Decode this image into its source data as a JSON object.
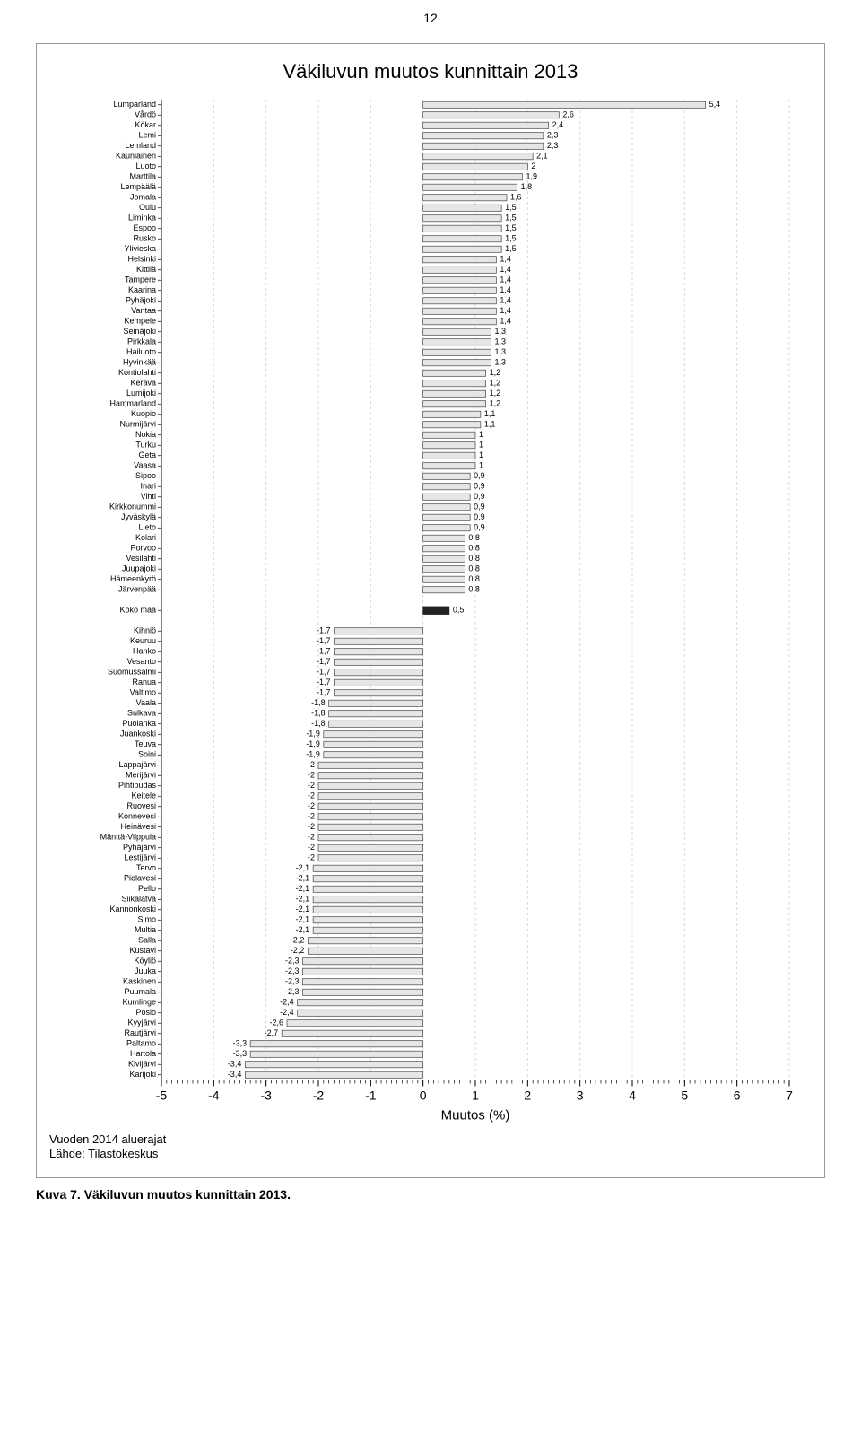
{
  "page_number": "12",
  "chart": {
    "type": "bar-horizontal",
    "title": "Väkiluvun muutos kunnittain 2013",
    "xlabel": "Muutos (%)",
    "xlim": [
      -5,
      7
    ],
    "xtick_step": 1,
    "minor_ticks": 10,
    "row_height": 11.5,
    "label_fontsize": 9,
    "value_fontsize": 9,
    "title_fontsize": 22,
    "xlabel_fontsize": 15,
    "bar_fill": "#e6e6e6",
    "bar_stroke": "#444444",
    "koko_fill": "#222222",
    "grid_color": "#d9d9d9",
    "axis_color": "#000000",
    "tick_color": "#000000",
    "text_color": "#000000",
    "background_color": "#ffffff",
    "series_top": [
      {
        "label": "Lumparland",
        "value": 5.4,
        "text": "5,4"
      },
      {
        "label": "Vårdö",
        "value": 2.6,
        "text": "2,6"
      },
      {
        "label": "Kökar",
        "value": 2.4,
        "text": "2,4"
      },
      {
        "label": "Lemi",
        "value": 2.3,
        "text": "2,3"
      },
      {
        "label": "Lemland",
        "value": 2.3,
        "text": "2,3"
      },
      {
        "label": "Kauniainen",
        "value": 2.1,
        "text": "2,1"
      },
      {
        "label": "Luoto",
        "value": 2.0,
        "text": "2"
      },
      {
        "label": "Marttila",
        "value": 1.9,
        "text": "1,9"
      },
      {
        "label": "Lempäälä",
        "value": 1.8,
        "text": "1,8"
      },
      {
        "label": "Jomala",
        "value": 1.6,
        "text": "1,6"
      },
      {
        "label": "Oulu",
        "value": 1.5,
        "text": "1,5"
      },
      {
        "label": "Liminka",
        "value": 1.5,
        "text": "1,5"
      },
      {
        "label": "Espoo",
        "value": 1.5,
        "text": "1,5"
      },
      {
        "label": "Rusko",
        "value": 1.5,
        "text": "1,5"
      },
      {
        "label": "Ylivieska",
        "value": 1.5,
        "text": "1,5"
      },
      {
        "label": "Helsinki",
        "value": 1.4,
        "text": "1,4"
      },
      {
        "label": "Kittilä",
        "value": 1.4,
        "text": "1,4"
      },
      {
        "label": "Tampere",
        "value": 1.4,
        "text": "1,4"
      },
      {
        "label": "Kaarina",
        "value": 1.4,
        "text": "1,4"
      },
      {
        "label": "Pyhäjoki",
        "value": 1.4,
        "text": "1,4"
      },
      {
        "label": "Vantaa",
        "value": 1.4,
        "text": "1,4"
      },
      {
        "label": "Kempele",
        "value": 1.4,
        "text": "1,4"
      },
      {
        "label": "Seinäjoki",
        "value": 1.3,
        "text": "1,3"
      },
      {
        "label": "Pirkkala",
        "value": 1.3,
        "text": "1,3"
      },
      {
        "label": "Hailuoto",
        "value": 1.3,
        "text": "1,3"
      },
      {
        "label": "Hyvinkää",
        "value": 1.3,
        "text": "1,3"
      },
      {
        "label": "Kontiolahti",
        "value": 1.2,
        "text": "1,2"
      },
      {
        "label": "Kerava",
        "value": 1.2,
        "text": "1,2"
      },
      {
        "label": "Lumijoki",
        "value": 1.2,
        "text": "1,2"
      },
      {
        "label": "Hammarland",
        "value": 1.2,
        "text": "1,2"
      },
      {
        "label": "Kuopio",
        "value": 1.1,
        "text": "1,1"
      },
      {
        "label": "Nurmijärvi",
        "value": 1.1,
        "text": "1,1"
      },
      {
        "label": "Nokia",
        "value": 1.0,
        "text": "1"
      },
      {
        "label": "Turku",
        "value": 1.0,
        "text": "1"
      },
      {
        "label": "Geta",
        "value": 1.0,
        "text": "1"
      },
      {
        "label": "Vaasa",
        "value": 1.0,
        "text": "1"
      },
      {
        "label": "Sipoo",
        "value": 0.9,
        "text": "0,9"
      },
      {
        "label": "Inari",
        "value": 0.9,
        "text": "0,9"
      },
      {
        "label": "Vihti",
        "value": 0.9,
        "text": "0,9"
      },
      {
        "label": "Kirkkonummi",
        "value": 0.9,
        "text": "0,9"
      },
      {
        "label": "Jyväskylä",
        "value": 0.9,
        "text": "0,9"
      },
      {
        "label": "Lieto",
        "value": 0.9,
        "text": "0,9"
      },
      {
        "label": "Kolari",
        "value": 0.8,
        "text": "0,8"
      },
      {
        "label": "Porvoo",
        "value": 0.8,
        "text": "0,8"
      },
      {
        "label": "Vesilahti",
        "value": 0.8,
        "text": "0,8"
      },
      {
        "label": "Juupajoki",
        "value": 0.8,
        "text": "0,8"
      },
      {
        "label": "Hämeenkyrö",
        "value": 0.8,
        "text": "0,8"
      },
      {
        "label": "Järvenpää",
        "value": 0.8,
        "text": "0,8"
      }
    ],
    "koko_maa": {
      "label": "Koko maa",
      "value": 0.5,
      "text": "0,5"
    },
    "series_bottom": [
      {
        "label": "Kihniö",
        "value": -1.7,
        "text": "-1,7"
      },
      {
        "label": "Keuruu",
        "value": -1.7,
        "text": "-1,7"
      },
      {
        "label": "Hanko",
        "value": -1.7,
        "text": "-1,7"
      },
      {
        "label": "Vesanto",
        "value": -1.7,
        "text": "-1,7"
      },
      {
        "label": "Suomussalmi",
        "value": -1.7,
        "text": "-1,7"
      },
      {
        "label": "Ranua",
        "value": -1.7,
        "text": "-1,7"
      },
      {
        "label": "Valtimo",
        "value": -1.7,
        "text": "-1,7"
      },
      {
        "label": "Vaala",
        "value": -1.8,
        "text": "-1,8"
      },
      {
        "label": "Sulkava",
        "value": -1.8,
        "text": "-1,8"
      },
      {
        "label": "Puolanka",
        "value": -1.8,
        "text": "-1,8"
      },
      {
        "label": "Juankoski",
        "value": -1.9,
        "text": "-1,9"
      },
      {
        "label": "Teuva",
        "value": -1.9,
        "text": "-1,9"
      },
      {
        "label": "Soini",
        "value": -1.9,
        "text": "-1,9"
      },
      {
        "label": "Lappajärvi",
        "value": -2.0,
        "text": "-2"
      },
      {
        "label": "Merijärvi",
        "value": -2.0,
        "text": "-2"
      },
      {
        "label": "Pihtipudas",
        "value": -2.0,
        "text": "-2"
      },
      {
        "label": "Keitele",
        "value": -2.0,
        "text": "-2"
      },
      {
        "label": "Ruovesi",
        "value": -2.0,
        "text": "-2"
      },
      {
        "label": "Konnevesi",
        "value": -2.0,
        "text": "-2"
      },
      {
        "label": "Heinävesi",
        "value": -2.0,
        "text": "-2"
      },
      {
        "label": "Mänttä-Vilppula",
        "value": -2.0,
        "text": "-2"
      },
      {
        "label": "Pyhäjärvi",
        "value": -2.0,
        "text": "-2"
      },
      {
        "label": "Lestijärvi",
        "value": -2.0,
        "text": "-2"
      },
      {
        "label": "Tervo",
        "value": -2.1,
        "text": "-2,1"
      },
      {
        "label": "Pielavesi",
        "value": -2.1,
        "text": "-2,1"
      },
      {
        "label": "Pello",
        "value": -2.1,
        "text": "-2,1"
      },
      {
        "label": "Siikalatva",
        "value": -2.1,
        "text": "-2,1"
      },
      {
        "label": "Kannonkoski",
        "value": -2.1,
        "text": "-2,1"
      },
      {
        "label": "Simo",
        "value": -2.1,
        "text": "-2,1"
      },
      {
        "label": "Multia",
        "value": -2.1,
        "text": "-2,1"
      },
      {
        "label": "Salla",
        "value": -2.2,
        "text": "-2,2"
      },
      {
        "label": "Kustavi",
        "value": -2.2,
        "text": "-2,2"
      },
      {
        "label": "Köyliö",
        "value": -2.3,
        "text": "-2,3"
      },
      {
        "label": "Juuka",
        "value": -2.3,
        "text": "-2,3"
      },
      {
        "label": "Kaskinen",
        "value": -2.3,
        "text": "-2,3"
      },
      {
        "label": "Puumala",
        "value": -2.3,
        "text": "-2,3"
      },
      {
        "label": "Kumlinge",
        "value": -2.4,
        "text": "-2,4"
      },
      {
        "label": "Posio",
        "value": -2.4,
        "text": "-2,4"
      },
      {
        "label": "Kyyjärvi",
        "value": -2.6,
        "text": "-2,6"
      },
      {
        "label": "Rautjärvi",
        "value": -2.7,
        "text": "-2,7"
      },
      {
        "label": "Paltamo",
        "value": -3.3,
        "text": "-3,3"
      },
      {
        "label": "Hartola",
        "value": -3.3,
        "text": "-3,3"
      },
      {
        "label": "Kivijärvi",
        "value": -3.4,
        "text": "-3,4"
      },
      {
        "label": "Karijoki",
        "value": -3.4,
        "text": "-3,4"
      }
    ]
  },
  "source_line1": "Vuoden 2014 aluerajat",
  "source_line2": "Lähde: Tilastokeskus",
  "caption": "Kuva 7. Väkiluvun muutos kunnittain 2013."
}
